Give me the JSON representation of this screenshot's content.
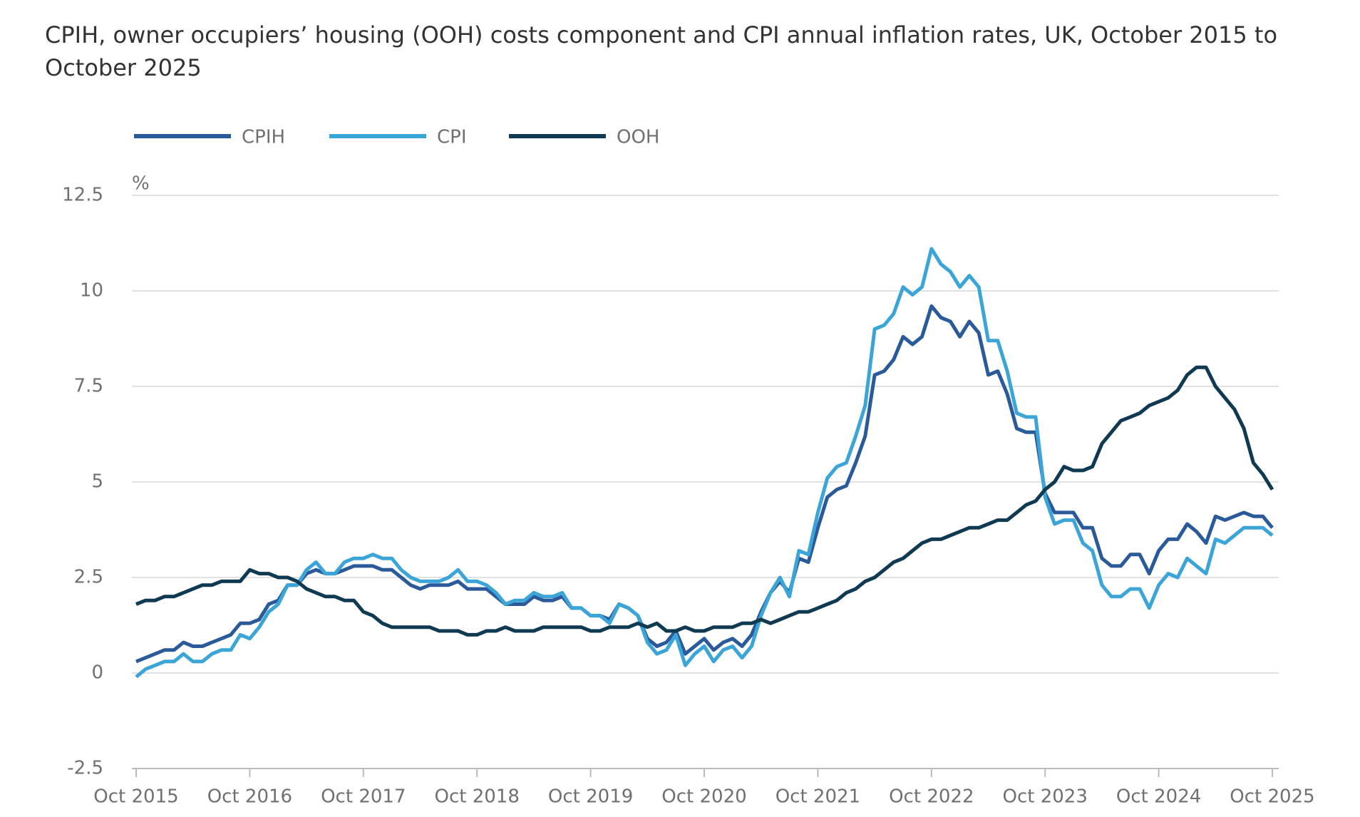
{
  "chart_data": {
    "type": "line",
    "title": "CPIH, owner occupiers’ housing (OOH) costs component and CPI annual inflation rates, UK, October 2015 to October 2025",
    "y_label": "%",
    "categories": [
      "Oct 2015",
      null,
      null,
      null,
      null,
      null,
      null,
      null,
      null,
      null,
      null,
      null,
      "Oct 2016",
      null,
      null,
      null,
      null,
      null,
      null,
      null,
      null,
      null,
      null,
      null,
      "Oct 2017",
      null,
      null,
      null,
      null,
      null,
      null,
      null,
      null,
      null,
      null,
      null,
      "Oct 2018",
      null,
      null,
      null,
      null,
      null,
      null,
      null,
      null,
      null,
      null,
      null,
      "Oct 2019",
      null,
      null,
      null,
      null,
      null,
      null,
      null,
      null,
      null,
      null,
      null,
      "Oct 2020",
      null,
      null,
      null,
      null,
      null,
      null,
      null,
      null,
      null,
      null,
      null,
      "Oct 2021",
      null,
      null,
      null,
      null,
      null,
      null,
      null,
      null,
      null,
      null,
      null,
      "Oct 2022",
      null,
      null,
      null,
      null,
      null,
      null,
      null,
      null,
      null,
      null,
      null,
      "Oct 2023",
      null,
      null,
      null,
      null,
      null,
      null,
      null,
      null,
      null,
      null,
      null,
      "Oct 2024",
      null,
      null,
      null,
      null,
      null,
      null,
      null,
      null,
      null,
      null,
      null,
      "Oct 2025"
    ],
    "series": [
      {
        "name": "CPIH",
        "color": "#2b5a9b",
        "values": [
          0.3,
          0.4,
          0.5,
          0.6,
          0.6,
          0.8,
          0.7,
          0.7,
          0.8,
          0.9,
          1.0,
          1.3,
          1.3,
          1.4,
          1.8,
          1.9,
          2.3,
          2.3,
          2.6,
          2.7,
          2.6,
          2.6,
          2.7,
          2.8,
          2.8,
          2.8,
          2.7,
          2.7,
          2.5,
          2.3,
          2.2,
          2.3,
          2.3,
          2.3,
          2.4,
          2.2,
          2.2,
          2.2,
          2.0,
          1.8,
          1.8,
          1.8,
          2.0,
          1.9,
          1.9,
          2.0,
          1.7,
          1.7,
          1.5,
          1.5,
          1.4,
          1.8,
          1.7,
          1.5,
          0.9,
          0.7,
          0.8,
          1.1,
          0.5,
          0.7,
          0.9,
          0.6,
          0.8,
          0.9,
          0.7,
          1.0,
          1.6,
          2.1,
          2.4,
          2.1,
          3.0,
          2.9,
          3.8,
          4.6,
          4.8,
          4.9,
          5.5,
          6.2,
          7.8,
          7.9,
          8.2,
          8.8,
          8.6,
          8.8,
          9.6,
          9.3,
          9.2,
          8.8,
          9.2,
          8.9,
          7.8,
          7.9,
          7.3,
          6.4,
          6.3,
          6.3,
          4.7,
          4.2,
          4.2,
          4.2,
          3.8,
          3.8,
          3.0,
          2.8,
          2.8,
          3.1,
          3.1,
          2.6,
          3.2,
          3.5,
          3.5,
          3.9,
          3.7,
          3.4,
          4.1,
          4.0,
          4.1,
          4.2,
          4.1,
          4.1,
          3.8
        ]
      },
      {
        "name": "CPI",
        "color": "#3aa5d6",
        "values": [
          -0.1,
          0.1,
          0.2,
          0.3,
          0.3,
          0.5,
          0.3,
          0.3,
          0.5,
          0.6,
          0.6,
          1.0,
          0.9,
          1.2,
          1.6,
          1.8,
          2.3,
          2.3,
          2.7,
          2.9,
          2.6,
          2.6,
          2.9,
          3.0,
          3.0,
          3.1,
          3.0,
          3.0,
          2.7,
          2.5,
          2.4,
          2.4,
          2.4,
          2.5,
          2.7,
          2.4,
          2.4,
          2.3,
          2.1,
          1.8,
          1.9,
          1.9,
          2.1,
          2.0,
          2.0,
          2.1,
          1.7,
          1.7,
          1.5,
          1.5,
          1.3,
          1.8,
          1.7,
          1.5,
          0.8,
          0.5,
          0.6,
          1.0,
          0.2,
          0.5,
          0.7,
          0.3,
          0.6,
          0.7,
          0.4,
          0.7,
          1.5,
          2.1,
          2.5,
          2.0,
          3.2,
          3.1,
          4.2,
          5.1,
          5.4,
          5.5,
          6.2,
          7.0,
          9.0,
          9.1,
          9.4,
          10.1,
          9.9,
          10.1,
          11.1,
          10.7,
          10.5,
          10.1,
          10.4,
          10.1,
          8.7,
          8.7,
          7.9,
          6.8,
          6.7,
          6.7,
          4.6,
          3.9,
          4.0,
          4.0,
          3.4,
          3.2,
          2.3,
          2.0,
          2.0,
          2.2,
          2.2,
          1.7,
          2.3,
          2.6,
          2.5,
          3.0,
          2.8,
          2.6,
          3.5,
          3.4,
          3.6,
          3.8,
          3.8,
          3.8,
          3.6
        ]
      },
      {
        "name": "OOH",
        "color": "#0f3a52",
        "values": [
          1.8,
          1.9,
          1.9,
          2.0,
          2.0,
          2.1,
          2.2,
          2.3,
          2.3,
          2.4,
          2.4,
          2.4,
          2.7,
          2.6,
          2.6,
          2.5,
          2.5,
          2.4,
          2.2,
          2.1,
          2.0,
          2.0,
          1.9,
          1.9,
          1.6,
          1.5,
          1.3,
          1.2,
          1.2,
          1.2,
          1.2,
          1.2,
          1.1,
          1.1,
          1.1,
          1.0,
          1.0,
          1.1,
          1.1,
          1.2,
          1.1,
          1.1,
          1.1,
          1.2,
          1.2,
          1.2,
          1.2,
          1.2,
          1.1,
          1.1,
          1.2,
          1.2,
          1.2,
          1.3,
          1.2,
          1.3,
          1.1,
          1.1,
          1.2,
          1.1,
          1.1,
          1.2,
          1.2,
          1.2,
          1.3,
          1.3,
          1.4,
          1.3,
          1.4,
          1.5,
          1.6,
          1.6,
          1.7,
          1.8,
          1.9,
          2.1,
          2.2,
          2.4,
          2.5,
          2.7,
          2.9,
          3.0,
          3.2,
          3.4,
          3.5,
          3.5,
          3.6,
          3.7,
          3.8,
          3.8,
          3.9,
          4.0,
          4.0,
          4.2,
          4.4,
          4.5,
          4.8,
          5.0,
          5.4,
          5.3,
          5.3,
          5.4,
          6.0,
          6.3,
          6.6,
          6.7,
          6.8,
          7.0,
          7.1,
          7.2,
          7.4,
          7.8,
          8.0,
          8.0,
          7.5,
          7.2,
          6.9,
          6.4,
          5.5,
          5.2,
          4.8
        ]
      }
    ],
    "ylim": [
      -2.5,
      12.5
    ],
    "yticks": [
      -2.5,
      0,
      2.5,
      5,
      7.5,
      10,
      12.5
    ],
    "grid": true,
    "legend": "top"
  }
}
